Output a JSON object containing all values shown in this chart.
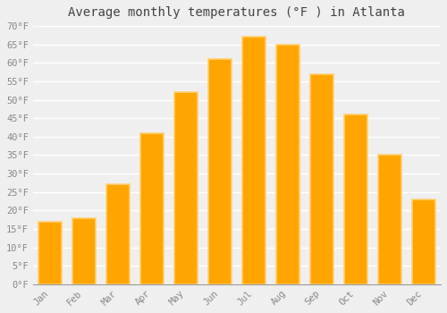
{
  "title": "Average monthly temperatures (°F ) in Atlanta",
  "months": [
    "Jan",
    "Feb",
    "Mar",
    "Apr",
    "May",
    "Jun",
    "Jul",
    "Aug",
    "Sep",
    "Oct",
    "Nov",
    "Dec"
  ],
  "values": [
    17,
    18,
    27,
    41,
    52,
    61,
    67,
    65,
    57,
    46,
    35,
    23
  ],
  "bar_color": "#FFA500",
  "bar_edge_color": "#FFD070",
  "background_color": "#EFEFEF",
  "grid_color": "#FFFFFF",
  "ylim": [
    0,
    70
  ],
  "yticks": [
    0,
    5,
    10,
    15,
    20,
    25,
    30,
    35,
    40,
    45,
    50,
    55,
    60,
    65,
    70
  ],
  "tick_label_color": "#888888",
  "title_color": "#444444",
  "title_fontsize": 10,
  "tick_fontsize": 7.5,
  "font_family": "monospace"
}
